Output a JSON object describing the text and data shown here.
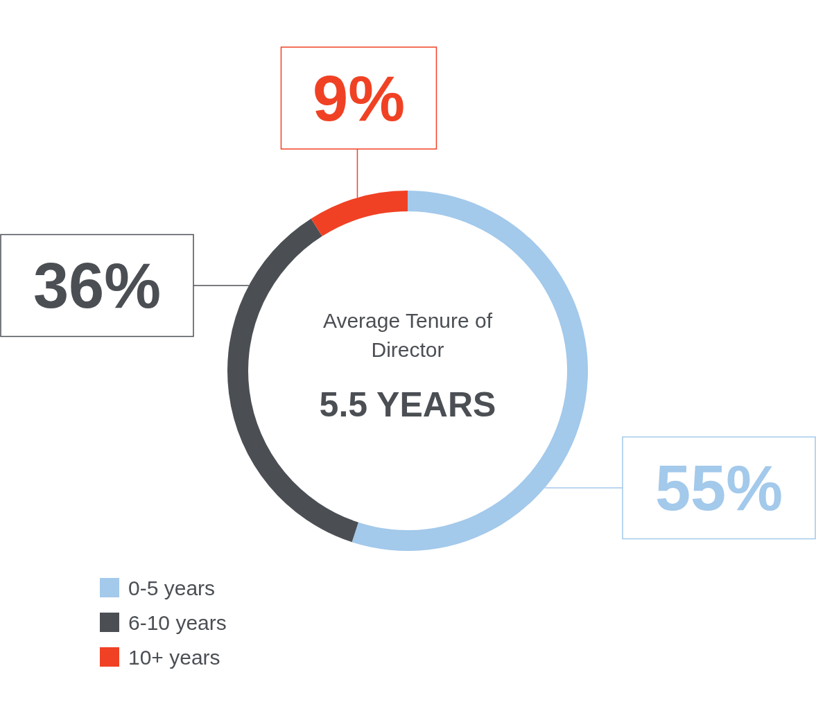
{
  "chart_data": {
    "type": "donut",
    "categories": [
      "0-5 years",
      "6-10 years",
      "10+ years"
    ],
    "values": [
      55,
      36,
      9
    ],
    "colors": [
      "#a3c9eb",
      "#4b4f54",
      "#f04124"
    ],
    "value_labels": [
      "55%",
      "36%",
      "9%"
    ],
    "annotations": [
      "Average Tenure of Director",
      "5.5 YEARS"
    ],
    "legend": "bottom left"
  }
}
